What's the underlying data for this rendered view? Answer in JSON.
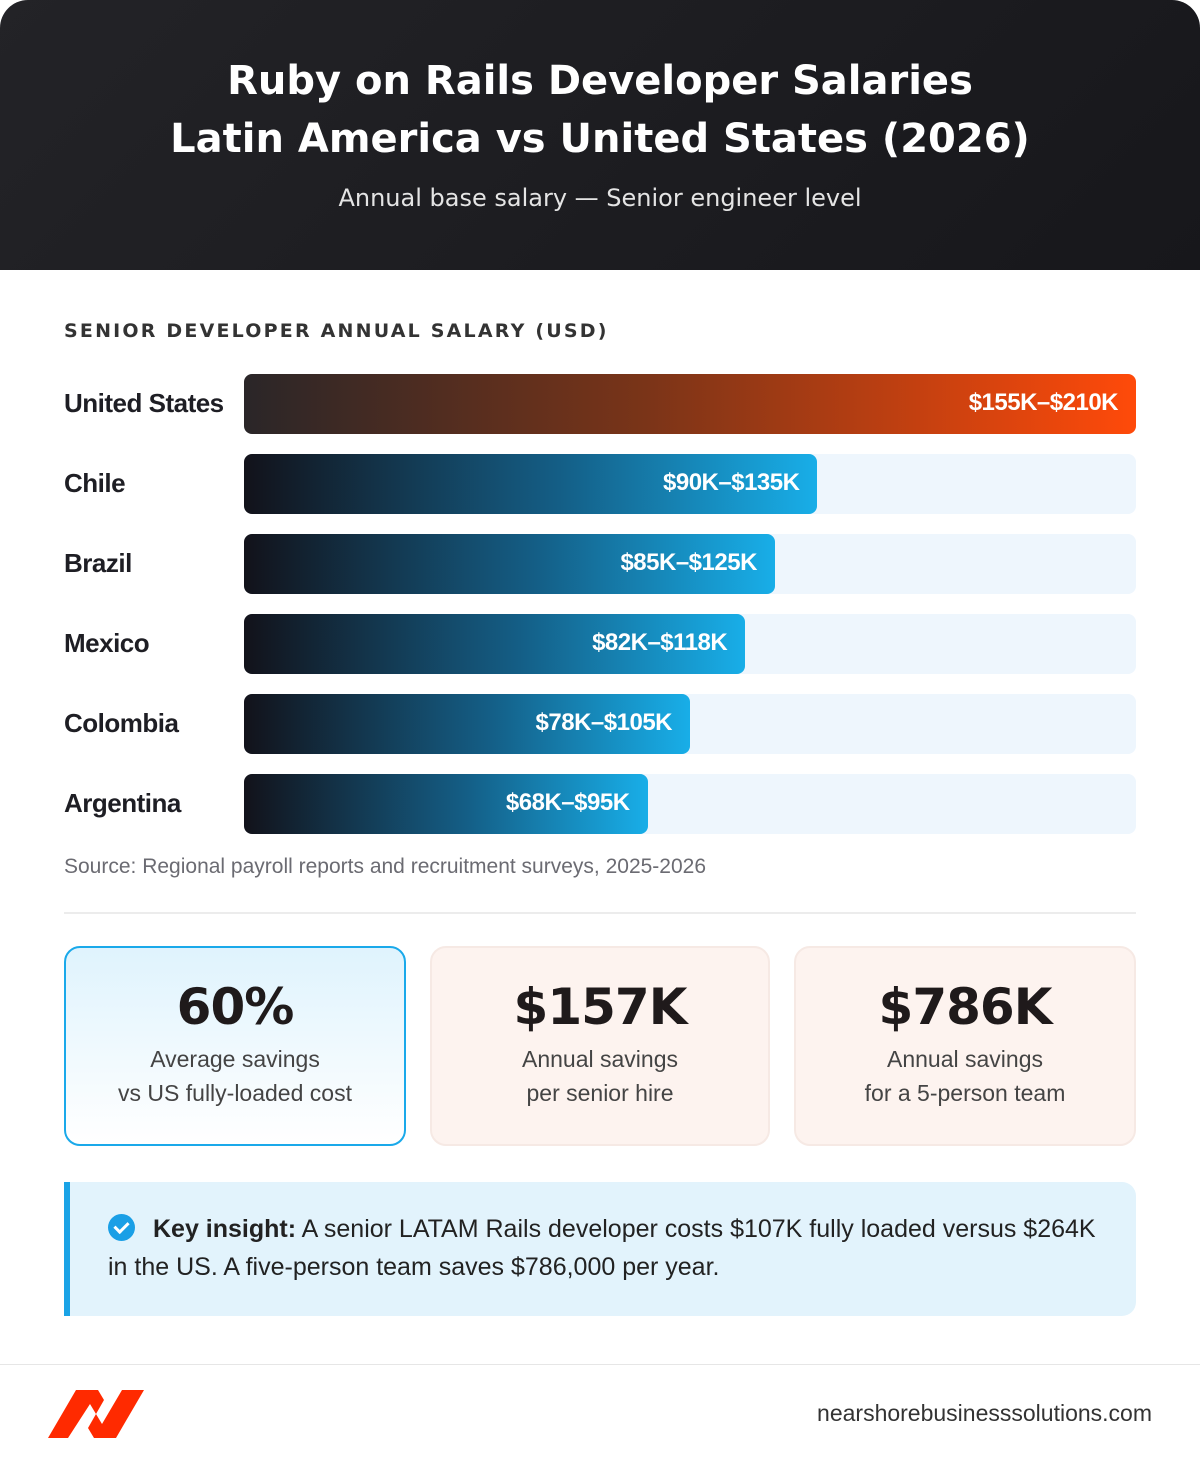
{
  "header": {
    "title_line1": "Ruby on Rails Developer Salaries",
    "title_line2": "Latin America vs United States (2026)",
    "subtitle": "Annual base salary — Senior engineer level"
  },
  "chart_data": {
    "type": "bar",
    "orientation": "horizontal",
    "title": "SENIOR DEVELOPER ANNUAL SALARY (USD)",
    "categories": [
      "United States",
      "Chile",
      "Brazil",
      "Mexico",
      "Colombia",
      "Argentina"
    ],
    "ranges_k_usd": [
      [
        155,
        210
      ],
      [
        90,
        135
      ],
      [
        85,
        125
      ],
      [
        82,
        118
      ],
      [
        78,
        105
      ],
      [
        68,
        95
      ]
    ],
    "labels": [
      "$155K–$210K",
      "$90K–$135K",
      "$85K–$125K",
      "$82K–$118K",
      "$78K–$105K",
      "$68K–$95K"
    ],
    "xlim": [
      0,
      210
    ],
    "colors": {
      "us": "#ff4a0a",
      "latam": "#18aee8"
    }
  },
  "source": "Source: Regional payroll reports and recruitment surveys, 2025-2026",
  "cards": [
    {
      "value": "60%",
      "line1": "Average savings",
      "line2": "vs US fully-loaded cost"
    },
    {
      "value": "$157K",
      "line1": "Annual savings",
      "line2": "per senior hire"
    },
    {
      "value": "$786K",
      "line1": "Annual savings",
      "line2": "for a 5-person team"
    }
  ],
  "insight": {
    "icon": "check-circle-icon",
    "lead": "Key insight:",
    "text": " A senior LATAM Rails developer costs $107K fully loaded versus $264K in the US. A five-person team saves $786,000 per year."
  },
  "footer": {
    "logo": "NBS",
    "domain": "nearshorebusinesssolutions.com"
  }
}
